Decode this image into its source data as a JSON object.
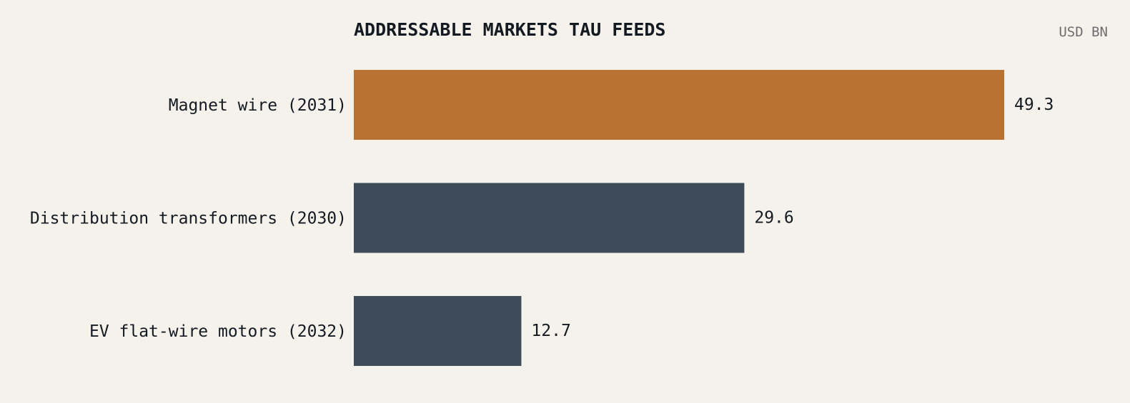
{
  "chart_data": {
    "type": "bar",
    "orientation": "horizontal",
    "title": "ADDRESSABLE MARKETS TAU FEEDS",
    "unit_label": "USD BN",
    "categories": [
      "Magnet wire (2031)",
      "Distribution transformers (2030)",
      "EV flat-wire motors (2032)"
    ],
    "values": [
      49.3,
      29.6,
      12.7
    ],
    "value_labels": [
      "49.3",
      "29.6",
      "12.7"
    ],
    "colors": [
      "#b87333",
      "#3d4b58",
      "#3d4b58"
    ],
    "highlight_color": "#b87333",
    "base_color": "#3d4b58",
    "xlim": [
      0,
      49.3
    ],
    "grid": false,
    "legend": "none"
  }
}
